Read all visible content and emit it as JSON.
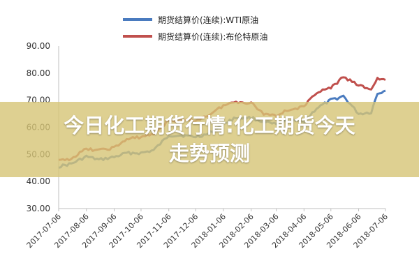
{
  "banner": {
    "line1": "今日化工期货行情:化工期货今天",
    "line2": "走势预测"
  },
  "chart_data": {
    "type": "line",
    "legend_position": "top",
    "ylim": [
      30,
      90
    ],
    "yticks": [
      "30.00",
      "40.00",
      "50.00",
      "60.00",
      "70.00",
      "80.00",
      "90.00"
    ],
    "ytick_values": [
      30,
      40,
      50,
      60,
      70,
      80,
      90
    ],
    "xticks": [
      "2017-07-06",
      "2017-08-06",
      "2017-09-06",
      "2017-10-06",
      "2017-11-06",
      "2017-12-06",
      "2018-01-06",
      "2018-02-06",
      "2018-03-06",
      "2018-04-06",
      "2018-05-06",
      "2018-06-06",
      "2018-07-06"
    ],
    "grid": false,
    "series": [
      {
        "name": "期货结算价(连续):WTI原油",
        "color": "#4a7bbf",
        "values": [
          [
            "2017-07-06",
            45.5
          ],
          [
            "2017-07-20",
            46.5
          ],
          [
            "2017-08-06",
            49.2
          ],
          [
            "2017-08-20",
            48.0
          ],
          [
            "2017-09-06",
            49.0
          ],
          [
            "2017-09-20",
            50.5
          ],
          [
            "2017-10-06",
            50.5
          ],
          [
            "2017-10-20",
            51.5
          ],
          [
            "2017-11-06",
            57.0
          ],
          [
            "2017-11-20",
            57.0
          ],
          [
            "2017-12-06",
            56.5
          ],
          [
            "2017-12-20",
            57.5
          ],
          [
            "2018-01-06",
            61.5
          ],
          [
            "2018-01-20",
            63.5
          ],
          [
            "2018-02-06",
            63.5
          ],
          [
            "2018-02-20",
            62.0
          ],
          [
            "2018-03-06",
            61.0
          ],
          [
            "2018-03-20",
            62.5
          ],
          [
            "2018-04-06",
            62.0
          ],
          [
            "2018-04-20",
            67.0
          ],
          [
            "2018-05-06",
            70.0
          ],
          [
            "2018-05-20",
            71.5
          ],
          [
            "2018-06-06",
            65.0
          ],
          [
            "2018-06-20",
            65.5
          ],
          [
            "2018-06-27",
            72.5
          ],
          [
            "2018-07-06",
            73.5
          ]
        ]
      },
      {
        "name": "期货结算价(连续):布伦特原油",
        "color": "#c0504d",
        "values": [
          [
            "2017-07-06",
            47.5
          ],
          [
            "2017-07-20",
            48.5
          ],
          [
            "2017-08-06",
            52.0
          ],
          [
            "2017-08-20",
            51.5
          ],
          [
            "2017-09-06",
            52.5
          ],
          [
            "2017-09-20",
            55.5
          ],
          [
            "2017-10-06",
            56.5
          ],
          [
            "2017-10-20",
            57.5
          ],
          [
            "2017-11-06",
            62.5
          ],
          [
            "2017-11-20",
            62.5
          ],
          [
            "2017-12-06",
            62.5
          ],
          [
            "2017-12-20",
            64.5
          ],
          [
            "2018-01-06",
            68.0
          ],
          [
            "2018-01-20",
            69.5
          ],
          [
            "2018-02-06",
            69.0
          ],
          [
            "2018-02-20",
            65.0
          ],
          [
            "2018-03-06",
            64.5
          ],
          [
            "2018-03-20",
            66.5
          ],
          [
            "2018-04-06",
            67.5
          ],
          [
            "2018-04-20",
            73.0
          ],
          [
            "2018-05-06",
            74.5
          ],
          [
            "2018-05-20",
            78.5
          ],
          [
            "2018-06-06",
            75.5
          ],
          [
            "2018-06-20",
            74.0
          ],
          [
            "2018-06-27",
            78.0
          ],
          [
            "2018-07-06",
            77.5
          ]
        ]
      }
    ]
  }
}
